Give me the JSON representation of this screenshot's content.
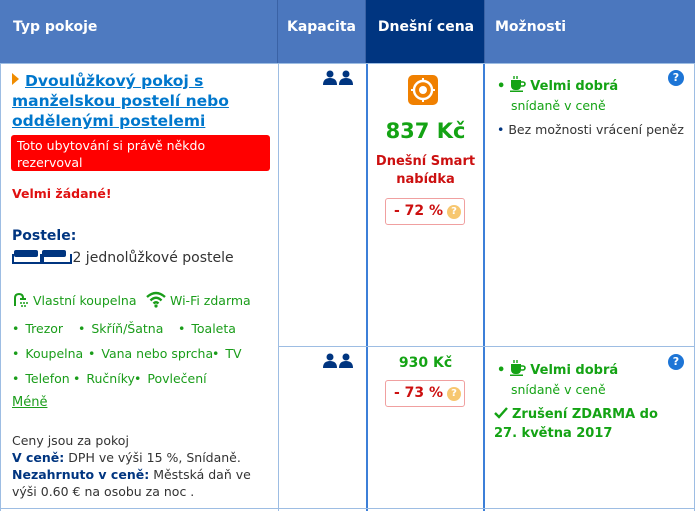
{
  "headers": {
    "room_type": "Typ pokoje",
    "capacity": "Kapacita",
    "today_price": "Dnešní cena",
    "options": "Možnosti"
  },
  "room": {
    "title": "Dvoulůžkový pokoj s manželskou postelí nebo oddělenými postelemi",
    "alert": "Toto ubytování si právě někdo rezervoval",
    "demand": "Velmi žádané!",
    "beds_heading": "Postele:",
    "beds_text": "2 jednolůžkové postele",
    "facilities": {
      "bathroom": "Vlastní koupelna",
      "wifi": "Wi-Fi zdarma",
      "safe": "Trezor",
      "wardrobe": "Skříň/Šatna",
      "toilet": "Toaleta",
      "bathroom2": "Koupelna",
      "bath_or_shower": "Vana nebo sprcha",
      "tv": "TV",
      "phone": "Telefon",
      "towels": "Ručníky",
      "linen": "Povlečení"
    },
    "less_link": "Méně",
    "prices_note": "Ceny jsou za pokoj",
    "included_label": "V ceně:",
    "included_text": "DPH ve výši 15 %, Snídaně.",
    "not_included_label": "Nezahrnuto v ceně:",
    "not_included_text": "Městská daň ve výši 0.60 € na osobu za noc ."
  },
  "offers": [
    {
      "price": "837 Kč",
      "deal_label": "Dnešní Smart nabídka",
      "discount": "- 72 %",
      "breakfast_title": "Velmi dobrá",
      "breakfast_sub": "snídaně v ceně",
      "policy": "Bez možnosti vrácení peněz"
    },
    {
      "price": "930 Kč",
      "discount": "- 73 %",
      "breakfast_title": "Velmi dobrá",
      "breakfast_sub": "snídaně v ceně",
      "policy": "Zrušení ZDARMA do 27. května 2017"
    }
  ],
  "colors": {
    "header_bg": "#4b77be",
    "today_price_header_bg": "#003580",
    "price_green": "#14a314",
    "alert_red": "#ff0000"
  }
}
